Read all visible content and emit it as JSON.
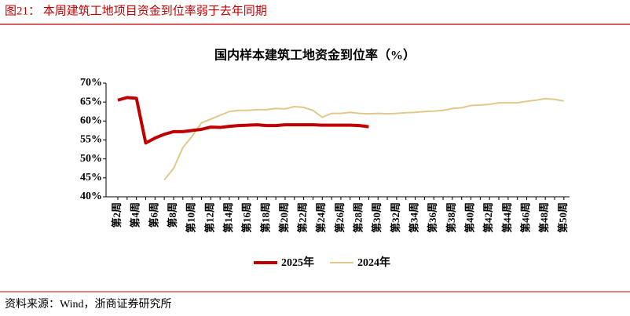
{
  "header": {
    "title": "图21：  本周建筑工地项目资金到位率弱于去年同期"
  },
  "chart_data": {
    "type": "line",
    "title": "国内样本建筑工地资金到位率（%）",
    "categories": [
      "第2周",
      null,
      "第4周",
      null,
      "第6周",
      null,
      "第8周",
      null,
      "第10周",
      null,
      "第12周",
      null,
      "第14周",
      null,
      "第16周",
      null,
      "第18周",
      null,
      "第20周",
      null,
      "第22周",
      null,
      "第24周",
      null,
      "第26周",
      null,
      "第28周",
      null,
      "第30周",
      null,
      "第32周",
      null,
      "第34周",
      null,
      "第36周",
      null,
      "第38周",
      null,
      "第40周",
      null,
      "第42周",
      null,
      "第44周",
      null,
      "第46周",
      null,
      "第48周",
      null,
      "第50周"
    ],
    "series": [
      {
        "name": "2025年",
        "color": "#c00000",
        "values": [
          65.5,
          66.2,
          66,
          54.2,
          55.5,
          56.5,
          57.2,
          57.2,
          57.5,
          57.8,
          58.4,
          58.3,
          58.6,
          58.8,
          58.9,
          59,
          58.8,
          58.8,
          59,
          59,
          59,
          59,
          58.9,
          58.9,
          58.9,
          58.9,
          58.8,
          58.5,
          null,
          null,
          null,
          null,
          null,
          null,
          null,
          null,
          null,
          null,
          null,
          null,
          null,
          null,
          null,
          null,
          null,
          null,
          null,
          null,
          null
        ]
      },
      {
        "name": "2024年",
        "color": "#e0c98a",
        "values": [
          null,
          null,
          null,
          null,
          null,
          44.5,
          47.5,
          53,
          56,
          59.5,
          60.5,
          61.5,
          62.5,
          62.8,
          62.8,
          63,
          63,
          63.3,
          63.2,
          63.8,
          63.6,
          62.8,
          61,
          62,
          62,
          62.3,
          62,
          61.9,
          62,
          61.9,
          62,
          62.2,
          62.3,
          62.5,
          62.6,
          62.8,
          63.3,
          63.5,
          64.1,
          64.2,
          64.4,
          64.8,
          64.8,
          64.8,
          65.2,
          65.5,
          65.9,
          65.7,
          65.3
        ]
      }
    ],
    "ylim": [
      40,
      70
    ],
    "yticks": [
      {
        "value": 40,
        "label": "40%"
      },
      {
        "value": 45,
        "label": "45%"
      },
      {
        "value": 50,
        "label": "50%"
      },
      {
        "value": 55,
        "label": "55%"
      },
      {
        "value": 60,
        "label": "60%"
      },
      {
        "value": 65,
        "label": "65%"
      },
      {
        "value": 70,
        "label": "70%"
      }
    ]
  },
  "footer": {
    "source": "资料来源：Wind，浙商证券研究所"
  }
}
